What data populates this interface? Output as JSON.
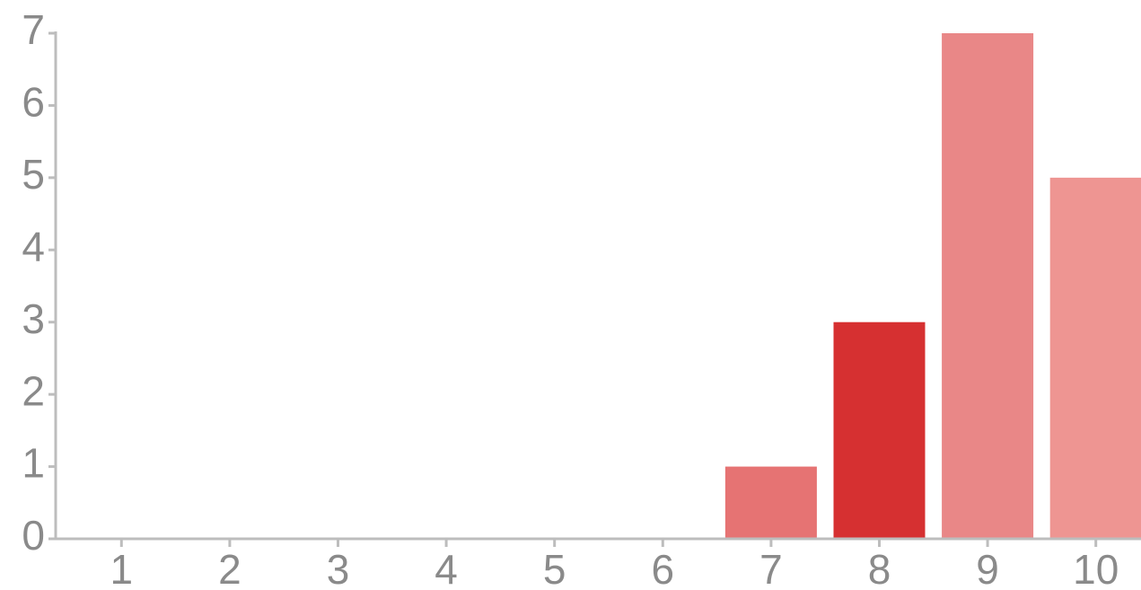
{
  "chart_data": {
    "type": "bar",
    "categories": [
      "1",
      "2",
      "3",
      "4",
      "5",
      "6",
      "7",
      "8",
      "9",
      "10"
    ],
    "values": [
      0,
      0,
      0,
      0,
      0,
      0,
      1,
      3,
      7,
      5
    ],
    "title": "",
    "xlabel": "",
    "ylabel": "",
    "ylim": [
      0,
      7
    ],
    "yticks": [
      "0",
      "1",
      "2",
      "3",
      "4",
      "5",
      "6",
      "7"
    ],
    "grid": false,
    "bar_colors": [
      "#e67373",
      "#e67373",
      "#e67373",
      "#e67373",
      "#e67373",
      "#e67373",
      "#e67373",
      "#d63031",
      "#e98787",
      "#ee9592"
    ]
  }
}
